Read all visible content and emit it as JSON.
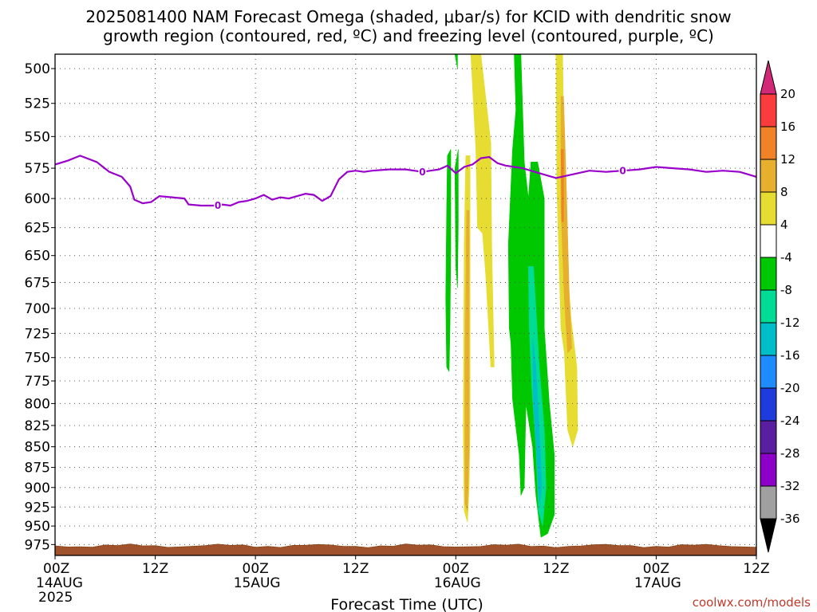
{
  "chart_data": {
    "type": "heatmap",
    "title": "2025081400 NAM Forecast Omega (shaded, μbar/s) for KCID with dendritic snow growth region (contoured, red, ºC) and freezing level (contoured, purple, ºC)",
    "title_lines": [
      "2025081400 NAM Forecast Omega (shaded, μbar/s) for KCID with dendritic snow",
      "growth region (contoured, red, ºC) and freezing level (contoured, purple, ºC)"
    ],
    "xlabel": "Forecast Time (UTC)",
    "ylabel": "",
    "x_unit": "hours",
    "xlim": [
      0,
      84
    ],
    "ylim": [
      990,
      490
    ],
    "y_scale": "log",
    "y_ticks": [
      500,
      525,
      550,
      575,
      600,
      625,
      650,
      675,
      700,
      725,
      750,
      775,
      800,
      825,
      850,
      875,
      900,
      925,
      950,
      975
    ],
    "x_ticks": [
      {
        "hour": 0,
        "lines": [
          "00Z",
          "14AUG",
          "2025"
        ]
      },
      {
        "hour": 12,
        "lines": [
          "12Z"
        ]
      },
      {
        "hour": 24,
        "lines": [
          "00Z",
          "15AUG"
        ]
      },
      {
        "hour": 36,
        "lines": [
          "12Z"
        ]
      },
      {
        "hour": 48,
        "lines": [
          "00Z",
          "16AUG"
        ]
      },
      {
        "hour": 60,
        "lines": [
          "12Z"
        ]
      },
      {
        "hour": 72,
        "lines": [
          "00Z",
          "17AUG"
        ]
      },
      {
        "hour": 84,
        "lines": [
          "12Z"
        ]
      }
    ],
    "grid": true,
    "colorbar": {
      "levels": [
        -36,
        -32,
        -28,
        -24,
        -20,
        -16,
        -12,
        -8,
        -4,
        4,
        8,
        12,
        16,
        20
      ],
      "colors": [
        "#000000",
        "#a0a0a0",
        "#8c00c8",
        "#5a1ea0",
        "#1e3cdc",
        "#1e8cff",
        "#00bec8",
        "#00dc96",
        "#00c800",
        "#ffffff",
        "#e6dc32",
        "#e6af2d",
        "#f08228",
        "#fa3c3c",
        "#d22878"
      ]
    },
    "freezing_level": {
      "label": "0",
      "color": "#9900cc",
      "x": [
        0,
        1.5,
        3,
        5,
        6.5,
        8,
        9,
        9.5,
        10.5,
        11.5,
        12.5,
        14,
        15.5,
        16,
        17.5,
        19,
        20,
        21,
        22,
        23,
        24,
        25,
        26,
        27,
        28,
        29,
        30,
        31,
        32,
        33,
        34,
        35,
        36,
        37,
        38,
        40,
        42,
        44,
        46,
        47,
        48,
        49,
        50,
        51,
        52,
        53,
        54,
        56,
        58,
        60,
        62,
        64,
        66,
        68,
        70,
        72,
        74,
        76,
        78,
        80,
        82,
        84
      ],
      "y": [
        572,
        569,
        565,
        570,
        578,
        582,
        590,
        601,
        604,
        603,
        598,
        599,
        600,
        605,
        606,
        606,
        605,
        606,
        603,
        602,
        600,
        597,
        601,
        599,
        600,
        598,
        596,
        597,
        602,
        598,
        584,
        578,
        577,
        578,
        577,
        576,
        576,
        578,
        576,
        573,
        579,
        574,
        572,
        567,
        566,
        571,
        573,
        575,
        579,
        583,
        580,
        577,
        578,
        577,
        576,
        574,
        575,
        576,
        578,
        577,
        578,
        582
      ]
    },
    "omega_regions": [
      {
        "level": 4,
        "color": "#e6dc32",
        "points": [
          [
            49.2,
            565
          ],
          [
            49.7,
            565
          ],
          [
            49.7,
            830
          ],
          [
            49.6,
            900
          ],
          [
            49.4,
            945
          ],
          [
            49.0,
            930
          ],
          [
            48.9,
            830
          ],
          [
            49.0,
            640
          ]
        ]
      },
      {
        "level": 8,
        "color": "#e6af2d",
        "points": [
          [
            49.3,
            610
          ],
          [
            49.6,
            610
          ],
          [
            49.6,
            850
          ],
          [
            49.4,
            930
          ],
          [
            49.1,
            920
          ],
          [
            49.1,
            760
          ]
        ]
      },
      {
        "level": 4,
        "color": "#e6dc32",
        "points": [
          [
            49.8,
            490
          ],
          [
            51.0,
            490
          ],
          [
            52.2,
            555
          ],
          [
            52.3,
            640
          ],
          [
            52.6,
            760
          ],
          [
            52.2,
            760
          ],
          [
            51.6,
            670
          ],
          [
            51.2,
            630
          ],
          [
            50.6,
            625
          ],
          [
            50.4,
            560
          ]
        ]
      },
      {
        "level": -4,
        "color": "#00c800",
        "points": [
          [
            47.0,
            565
          ],
          [
            47.4,
            560
          ],
          [
            47.4,
            645
          ],
          [
            47.3,
            720
          ],
          [
            47.2,
            765
          ],
          [
            46.9,
            760
          ],
          [
            46.8,
            690
          ],
          [
            46.9,
            610
          ]
        ]
      },
      {
        "level": -4,
        "color": "#00c800",
        "points": [
          [
            47.9,
            490
          ],
          [
            48.2,
            490
          ],
          [
            48.2,
            500
          ]
        ]
      },
      {
        "level": -4,
        "color": "#00c800",
        "points": [
          [
            47.9,
            575
          ],
          [
            48.3,
            560
          ],
          [
            48.3,
            620
          ],
          [
            48.2,
            680
          ],
          [
            48.0,
            660
          ]
        ]
      },
      {
        "level": -4,
        "color": "#00c800",
        "points": [
          [
            53.7,
            490
          ],
          [
            55.8,
            490
          ],
          [
            56.2,
            570
          ],
          [
            56.7,
            600
          ],
          [
            57.0,
            570
          ],
          [
            57.8,
            570
          ],
          [
            58.6,
            600
          ],
          [
            58.6,
            720
          ],
          [
            59.2,
            800
          ],
          [
            59.8,
            860
          ],
          [
            59.8,
            935
          ],
          [
            59.0,
            960
          ],
          [
            58.2,
            965
          ],
          [
            57.6,
            910
          ],
          [
            57.2,
            850
          ],
          [
            56.4,
            800
          ],
          [
            56.2,
            900
          ],
          [
            55.8,
            910
          ],
          [
            55.6,
            860
          ],
          [
            54.8,
            795
          ],
          [
            54.6,
            735
          ],
          [
            54.4,
            720
          ],
          [
            54.3,
            640
          ],
          [
            54.8,
            560
          ],
          [
            55.2,
            530
          ],
          [
            55.0,
            490
          ]
        ]
      },
      {
        "level": -8,
        "color": "#00dc96",
        "points": [
          [
            56.7,
            660
          ],
          [
            57.3,
            660
          ],
          [
            58.0,
            760
          ],
          [
            58.6,
            830
          ],
          [
            58.8,
            900
          ],
          [
            58.4,
            950
          ],
          [
            57.9,
            930
          ],
          [
            57.6,
            850
          ],
          [
            57.1,
            780
          ],
          [
            56.8,
            720
          ]
        ]
      },
      {
        "level": -12,
        "color": "#00bec8",
        "points": [
          [
            57.2,
            730
          ],
          [
            57.6,
            760
          ],
          [
            58.1,
            850
          ],
          [
            58.3,
            900
          ],
          [
            58.0,
            920
          ],
          [
            57.7,
            860
          ],
          [
            57.3,
            800
          ]
        ]
      },
      {
        "level": 4,
        "color": "#e6dc32",
        "points": [
          [
            60.0,
            490
          ],
          [
            60.8,
            490
          ],
          [
            61.0,
            580
          ],
          [
            61.2,
            640
          ],
          [
            61.8,
            710
          ],
          [
            62.5,
            760
          ],
          [
            62.6,
            830
          ],
          [
            62.0,
            850
          ],
          [
            61.4,
            830
          ],
          [
            61.0,
            745
          ],
          [
            60.6,
            720
          ],
          [
            60.3,
            640
          ],
          [
            60.1,
            590
          ]
        ]
      },
      {
        "level": 8,
        "color": "#e6af2d",
        "points": [
          [
            60.6,
            520
          ],
          [
            60.9,
            520
          ],
          [
            61.2,
            580
          ],
          [
            61.6,
            690
          ],
          [
            61.9,
            740
          ],
          [
            61.4,
            745
          ],
          [
            61.0,
            690
          ],
          [
            60.6,
            610
          ]
        ]
      },
      {
        "level": 12,
        "color": "#f08228",
        "points": [
          [
            60.6,
            560
          ],
          [
            60.9,
            560
          ],
          [
            60.9,
            620
          ],
          [
            60.7,
            620
          ]
        ]
      }
    ]
  },
  "credit": "coolwx.com/models"
}
